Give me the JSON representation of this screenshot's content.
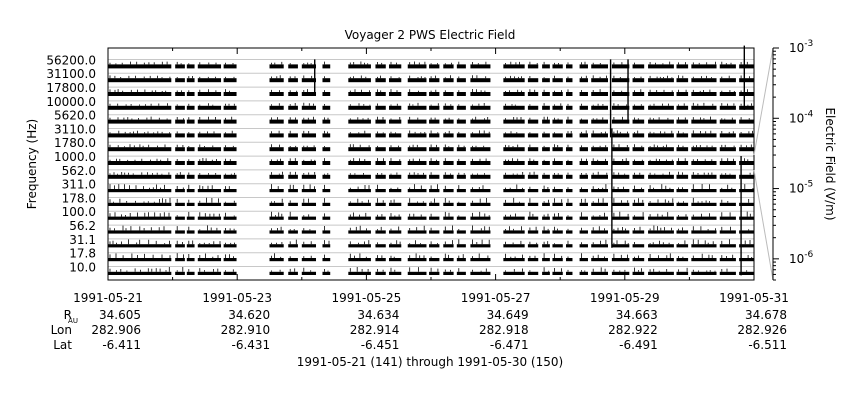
{
  "chart_data": {
    "type": "line",
    "title": "Voyager 2 PWS Electric Field",
    "ylabel": "Frequency (Hz)",
    "colorbar_label": "Electric Field (V/m)",
    "colorbar_scale": "log",
    "colorbar_range": [
      5e-07,
      0.001
    ],
    "colorbar_ticks": [
      {
        "mant": "10",
        "exp": "-3",
        "value": 0.001
      },
      {
        "mant": "10",
        "exp": "-4",
        "value": 0.0001
      },
      {
        "mant": "10",
        "exp": "-5",
        "value": 1e-05
      },
      {
        "mant": "10",
        "exp": "-6",
        "value": 1e-06
      }
    ],
    "channels": [
      "10.0",
      "17.8",
      "31.1",
      "56.2",
      "100.0",
      "178.0",
      "311.0",
      "562.0",
      "1000.0",
      "1780.0",
      "3110.0",
      "5620.0",
      "10000.0",
      "17800.0",
      "31100.0",
      "56200.0"
    ],
    "channel_labels_shown": [
      "10.0",
      "17.8",
      "31.1",
      "56.2",
      "100.0",
      "178.0",
      "311.0",
      "562.0",
      "1000.0",
      "1780.0",
      "3110.0",
      "5620.0",
      "10000.0",
      "17800.0",
      "31100.0",
      "56200.0"
    ],
    "xlim": [
      "1991-05-21",
      "1991-05-31"
    ],
    "x_tick_dates": [
      "1991-05-21",
      "1991-05-23",
      "1991-05-25",
      "1991-05-27",
      "1991-05-29",
      "1991-05-31"
    ],
    "x_minor_tick_days": [
      1,
      3,
      5,
      7,
      9
    ],
    "ephemeris": [
      {
        "label": "R",
        "sub": "AU",
        "values": [
          "34.605",
          "34.620",
          "34.634",
          "34.649",
          "34.663",
          "34.678"
        ]
      },
      {
        "label": "Lon",
        "sub": "",
        "values": [
          "282.906",
          "282.910",
          "282.914",
          "282.918",
          "282.922",
          "282.926"
        ]
      },
      {
        "label": "Lat",
        "sub": "",
        "values": [
          "-6.411",
          "-6.431",
          "-6.451",
          "-6.471",
          "-6.491",
          "-6.511"
        ]
      }
    ],
    "data_segments_days": [
      [
        0.0,
        0.98
      ],
      [
        1.04,
        1.19
      ],
      [
        1.22,
        1.34
      ],
      [
        1.39,
        1.75
      ],
      [
        1.79,
        1.99
      ],
      [
        2.5,
        2.72
      ],
      [
        2.79,
        2.94
      ],
      [
        3.0,
        3.22
      ],
      [
        3.32,
        3.44
      ],
      [
        3.72,
        4.07
      ],
      [
        4.14,
        4.3
      ],
      [
        4.35,
        4.54
      ],
      [
        4.64,
        4.93
      ],
      [
        4.97,
        5.13
      ],
      [
        5.19,
        5.35
      ],
      [
        5.4,
        5.54
      ],
      [
        5.61,
        5.92
      ],
      [
        6.12,
        6.45
      ],
      [
        6.5,
        6.66
      ],
      [
        6.72,
        6.84
      ],
      [
        6.88,
        7.04
      ],
      [
        7.09,
        7.19
      ],
      [
        7.3,
        7.43
      ],
      [
        7.48,
        7.74
      ],
      [
        7.8,
        8.07
      ],
      [
        8.12,
        8.3
      ],
      [
        8.36,
        8.76
      ],
      [
        8.8,
        8.98
      ],
      [
        9.03,
        9.42
      ],
      [
        9.47,
        9.72
      ],
      [
        9.77,
        10.0
      ]
    ],
    "spikes": [
      {
        "day": 3.2,
        "rows": [
          13,
          15
        ]
      },
      {
        "day": 7.78,
        "rows": [
          10,
          15
        ]
      },
      {
        "day": 7.8,
        "rows": [
          2,
          10
        ]
      },
      {
        "day": 8.05,
        "rows": [
          11,
          15
        ]
      },
      {
        "day": 9.8,
        "rows": [
          0,
          8
        ]
      },
      {
        "day": 9.85,
        "rows": [
          12,
          16
        ]
      }
    ],
    "footer": "1991-05-21 (141) through 1991-05-30 (150)",
    "grid": true
  }
}
